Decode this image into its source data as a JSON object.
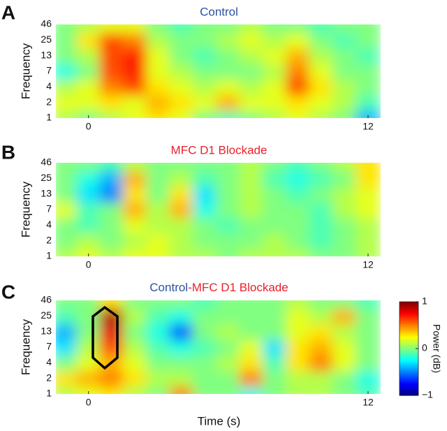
{
  "chart_data": [
    {
      "type": "heatmap",
      "panel_label": "A",
      "title": "Control",
      "title_color": "#2a52a0",
      "ylabel": "Frequency",
      "x": [
        -1,
        0,
        1,
        2,
        3,
        4,
        5,
        6,
        7,
        8,
        9,
        10,
        11,
        12
      ],
      "xlim": [
        -1.4,
        12.6
      ],
      "xticks": [
        0,
        12
      ],
      "frequencies": [
        1,
        2,
        4,
        7,
        13,
        25,
        46
      ],
      "colormap": "jet",
      "zlim": [
        -1,
        1
      ],
      "z": [
        [
          0.1,
          0.0,
          0.1,
          0.2,
          0.3,
          0.2,
          0.0,
          -0.1,
          0.0,
          0.1,
          0.2,
          0.1,
          0.0,
          -0.4
        ],
        [
          0.2,
          0.2,
          0.3,
          0.2,
          0.4,
          0.3,
          0.2,
          0.4,
          0.2,
          0.2,
          0.3,
          0.2,
          0.1,
          -0.1
        ],
        [
          0.1,
          0.2,
          0.5,
          0.6,
          0.3,
          0.2,
          0.1,
          0.2,
          0.1,
          0.2,
          0.6,
          0.3,
          0.1,
          0.0
        ],
        [
          -0.2,
          0.0,
          0.6,
          0.7,
          0.2,
          0.1,
          0.0,
          0.0,
          0.0,
          0.1,
          0.5,
          0.2,
          0.0,
          0.0
        ],
        [
          0.0,
          0.1,
          0.6,
          0.7,
          0.2,
          0.0,
          -0.1,
          0.0,
          0.1,
          0.2,
          0.4,
          0.1,
          0.0,
          -0.1
        ],
        [
          0.0,
          0.3,
          0.6,
          0.5,
          0.1,
          0.0,
          0.0,
          0.1,
          0.2,
          0.1,
          0.2,
          0.0,
          -0.1,
          0.0
        ],
        [
          0.0,
          0.1,
          0.2,
          0.2,
          0.0,
          -0.1,
          0.0,
          0.0,
          0.1,
          0.0,
          0.0,
          -0.1,
          0.0,
          0.0
        ]
      ]
    },
    {
      "type": "heatmap",
      "panel_label": "B",
      "title": "MFC D1 Blockade",
      "title_color": "#e8202a",
      "ylabel": "Frequency",
      "x": [
        -1,
        0,
        1,
        2,
        3,
        4,
        5,
        6,
        7,
        8,
        9,
        10,
        11,
        12
      ],
      "xlim": [
        -1.4,
        12.6
      ],
      "xticks": [
        0,
        12
      ],
      "frequencies": [
        1,
        2,
        4,
        7,
        13,
        25,
        46
      ],
      "colormap": "jet",
      "zlim": [
        -1,
        1
      ],
      "z": [
        [
          0.1,
          0.2,
          0.1,
          0.2,
          0.2,
          0.1,
          0.1,
          0.0,
          0.1,
          0.1,
          0.1,
          0.0,
          0.0,
          0.1
        ],
        [
          0.0,
          0.1,
          0.0,
          0.1,
          0.2,
          0.1,
          0.0,
          0.0,
          0.0,
          0.1,
          0.0,
          -0.1,
          0.0,
          0.1
        ],
        [
          0.0,
          -0.1,
          0.0,
          0.2,
          0.1,
          0.1,
          0.0,
          -0.1,
          0.0,
          0.0,
          0.0,
          -0.1,
          0.0,
          0.1
        ],
        [
          0.2,
          -0.1,
          0.0,
          0.4,
          0.1,
          0.4,
          -0.2,
          0.0,
          0.1,
          0.0,
          0.0,
          -0.1,
          0.1,
          0.2
        ],
        [
          0.0,
          -0.3,
          -0.5,
          0.3,
          0.0,
          0.3,
          -0.3,
          0.0,
          0.1,
          0.0,
          -0.1,
          0.0,
          0.1,
          0.2
        ],
        [
          0.0,
          -0.2,
          -0.4,
          0.4,
          0.0,
          0.1,
          -0.1,
          0.0,
          0.1,
          -0.1,
          -0.2,
          -0.1,
          0.0,
          0.3
        ],
        [
          0.0,
          0.0,
          -0.1,
          0.1,
          0.0,
          0.0,
          0.0,
          0.0,
          0.1,
          0.0,
          -0.1,
          0.0,
          0.1,
          0.3
        ]
      ]
    },
    {
      "type": "heatmap",
      "panel_label": "C",
      "title_parts": [
        {
          "text": "Control",
          "color": "#2a52a0"
        },
        {
          "text": "-MFC D1 Blockade",
          "color": "#e8202a"
        }
      ],
      "ylabel": "Frequency",
      "xlabel": "Time (s)",
      "x": [
        -1,
        0,
        1,
        2,
        3,
        4,
        5,
        6,
        7,
        8,
        9,
        10,
        11,
        12
      ],
      "xlim": [
        -1.4,
        12.6
      ],
      "xticks": [
        0,
        12
      ],
      "frequencies": [
        1,
        2,
        4,
        7,
        13,
        25,
        46
      ],
      "colormap": "jet",
      "zlim": [
        -1,
        1
      ],
      "colorbar": {
        "label": "Power (dB)",
        "ticks": [
          1,
          0,
          {
            "value": -1,
            "label": "−1"
          }
        ]
      },
      "z": [
        [
          0.1,
          0.2,
          0.3,
          0.1,
          0.0,
          0.5,
          0.0,
          0.0,
          -0.2,
          0.0,
          0.1,
          0.1,
          0.0,
          -0.1
        ],
        [
          0.3,
          0.4,
          0.5,
          0.3,
          0.1,
          0.1,
          0.0,
          0.0,
          0.5,
          0.0,
          0.1,
          0.1,
          0.0,
          -0.2
        ],
        [
          0.0,
          0.2,
          0.4,
          0.2,
          0.0,
          0.0,
          0.0,
          0.1,
          0.3,
          -0.1,
          0.3,
          0.5,
          0.2,
          0.0
        ],
        [
          -0.3,
          0.1,
          0.6,
          0.1,
          -0.1,
          -0.2,
          -0.1,
          0.0,
          0.2,
          -0.3,
          0.3,
          0.4,
          0.2,
          0.0
        ],
        [
          -0.4,
          0.0,
          0.8,
          0.0,
          -0.2,
          -0.6,
          0.0,
          0.1,
          0.0,
          0.0,
          0.2,
          0.3,
          0.1,
          0.0
        ],
        [
          -0.1,
          0.0,
          0.9,
          0.1,
          -0.1,
          -0.2,
          0.0,
          0.0,
          0.0,
          0.0,
          0.2,
          0.1,
          0.4,
          0.0
        ],
        [
          0.0,
          0.0,
          0.3,
          0.0,
          0.0,
          0.0,
          -0.1,
          0.0,
          0.0,
          0.0,
          0.1,
          0.0,
          0.0,
          -0.1
        ]
      ]
    }
  ]
}
